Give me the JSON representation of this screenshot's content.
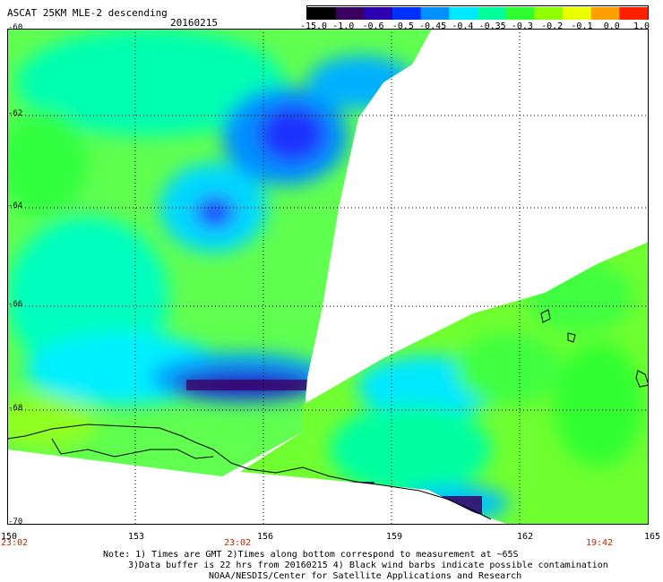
{
  "title": "ASCAT 25KM MLE-2 descending",
  "date": "20160215",
  "colorbar": {
    "labels": [
      "-15.0",
      "-1.0",
      "-0.6",
      "-0.5",
      "-0.45",
      "-0.4",
      "-0.35",
      "-0.3",
      "-0.2",
      "-0.1",
      "0.0",
      "1.0"
    ],
    "colors": [
      "#000000",
      "#3a0060",
      "#2a00b0",
      "#0030ff",
      "#0090ff",
      "#00e8ff",
      "#00ff9a",
      "#30ff30",
      "#90ff00",
      "#e8ff00",
      "#ffa000",
      "#ff2000"
    ]
  },
  "map": {
    "lat_labels": [
      "-60",
      "-62",
      "-64",
      "-66",
      "-68",
      "-70"
    ],
    "lon_labels": [
      "150",
      "153",
      "156",
      "159",
      "162",
      "165"
    ],
    "time_labels": [
      "23:02",
      "23:02",
      "19:42"
    ]
  },
  "notes": [
    "Note: 1) Times are GMT 2)Times along bottom correspond to measurement at ~65S",
    "3)Data buffer is 22 hrs from 20160215 4) Black wind barbs indicate possible contamination",
    "NOAA/NESDIS/Center for Satellite Applications and Research"
  ]
}
